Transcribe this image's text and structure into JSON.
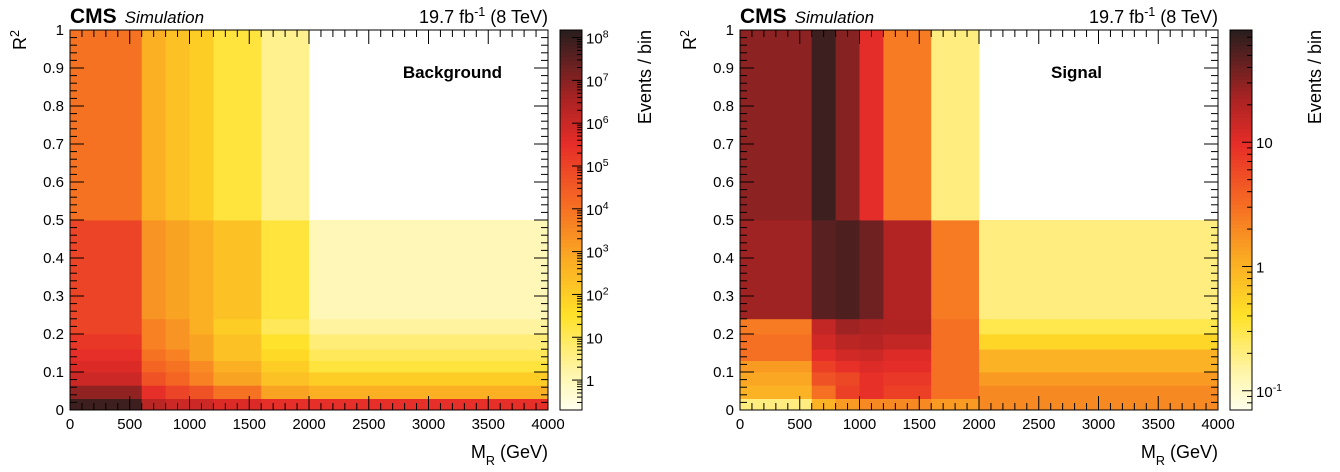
{
  "chart_data": [
    {
      "type": "heatmap",
      "title": "",
      "header_left_bold": "CMS",
      "header_left_italic": "Simulation",
      "header_right": {
        "base": "19.7 fb",
        "exp": "-1",
        "tail": " (8 TeV)"
      },
      "label": "Background",
      "xlabel": {
        "base": "M",
        "sub": "R",
        "tail": " (GeV)"
      },
      "ylabel": {
        "base": "R",
        "sup": "2"
      },
      "zlabel": "Events / bin",
      "xlim": [
        0,
        4000
      ],
      "ylim": [
        0,
        1
      ],
      "zscale": "log",
      "zlim": [
        0.2,
        150000000
      ],
      "x_edges": [
        0,
        600,
        800,
        1000,
        1200,
        1600,
        2000,
        4000
      ],
      "y_edges": [
        0,
        0.03,
        0.065,
        0.1,
        0.13,
        0.16,
        0.2,
        0.24,
        0.5,
        1.0
      ],
      "x_ticks": [
        0,
        500,
        1000,
        1500,
        2000,
        2500,
        3000,
        3500,
        4000
      ],
      "x_tick_labels": [
        "0",
        "500",
        "1000",
        "1500",
        "2000",
        "2500",
        "3000",
        "3500",
        "4000"
      ],
      "y_ticks": [
        0,
        0.1,
        0.2,
        0.3,
        0.4,
        0.5,
        0.6,
        0.7,
        0.8,
        0.9,
        1.0
      ],
      "y_tick_labels": [
        "0",
        "0.1",
        "0.2",
        "0.3",
        "0.4",
        "0.5",
        "0.6",
        "0.7",
        "0.8",
        "0.9",
        "1"
      ],
      "z_ticks": [
        {
          "base": "1",
          "exp": "",
          "value": 1
        },
        {
          "base": "10",
          "exp": "",
          "value": 10
        },
        {
          "base": "10",
          "exp": "2",
          "value": 100
        },
        {
          "base": "10",
          "exp": "3",
          "value": 1000
        },
        {
          "base": "10",
          "exp": "4",
          "value": 10000
        },
        {
          "base": "10",
          "exp": "5",
          "value": 100000
        },
        {
          "base": "10",
          "exp": "6",
          "value": 1000000
        },
        {
          "base": "10",
          "exp": "7",
          "value": 10000000
        },
        {
          "base": "10",
          "exp": "8",
          "value": 100000000
        }
      ],
      "values": [
        [
          80000000,
          2000000,
          1000000,
          1000000,
          500000,
          300000,
          300000
        ],
        [
          8000000,
          300000,
          100000,
          50000,
          10000,
          1000,
          500
        ],
        [
          1000000,
          50000,
          20000,
          5000,
          1000,
          200,
          100
        ],
        [
          500000,
          20000,
          10000,
          3000,
          500,
          100,
          20
        ],
        [
          300000,
          10000,
          5000,
          1000,
          200,
          50,
          10
        ],
        [
          200000,
          5000,
          2000,
          1000,
          200,
          30,
          5
        ],
        [
          100000,
          5000,
          2000,
          500,
          100,
          10,
          2
        ],
        [
          100000,
          2000,
          1000,
          500,
          200,
          20,
          1
        ],
        [
          10000,
          500,
          200,
          100,
          20,
          3,
          null
        ]
      ]
    },
    {
      "type": "heatmap",
      "title": "",
      "header_left_bold": "CMS",
      "header_left_italic": "Simulation",
      "header_right": {
        "base": "19.7 fb",
        "exp": "-1",
        "tail": " (8 TeV)"
      },
      "label": "Signal",
      "xlabel": {
        "base": "M",
        "sub": "R",
        "tail": " (GeV)"
      },
      "ylabel": {
        "base": "R",
        "sup": "2"
      },
      "zlabel": "Events / bin",
      "xlim": [
        0,
        4000
      ],
      "ylim": [
        0,
        1
      ],
      "zscale": "log",
      "zlim": [
        0.07,
        80
      ],
      "x_edges": [
        0,
        600,
        800,
        1000,
        1200,
        1600,
        2000,
        4000
      ],
      "y_edges": [
        0,
        0.03,
        0.065,
        0.1,
        0.13,
        0.16,
        0.2,
        0.24,
        0.5,
        1.0
      ],
      "x_ticks": [
        0,
        500,
        1000,
        1500,
        2000,
        2500,
        3000,
        3500,
        4000
      ],
      "x_tick_labels": [
        "0",
        "500",
        "1000",
        "1500",
        "2000",
        "2500",
        "3000",
        "3500",
        "4000"
      ],
      "y_ticks": [
        0,
        0.1,
        0.2,
        0.3,
        0.4,
        0.5,
        0.6,
        0.7,
        0.8,
        0.9,
        1.0
      ],
      "y_tick_labels": [
        "0",
        "0.1",
        "0.2",
        "0.3",
        "0.4",
        "0.5",
        "0.6",
        "0.7",
        "0.8",
        "0.9",
        "1"
      ],
      "z_ticks": [
        {
          "base": "10",
          "exp": "-1",
          "value": 0.1
        },
        {
          "base": "1",
          "exp": "",
          "value": 1
        },
        {
          "base": "10",
          "exp": "",
          "value": 10
        }
      ],
      "values": [
        [
          0.2,
          1,
          1.5,
          2,
          2,
          1.5,
          2
        ],
        [
          1,
          3,
          7,
          9,
          7,
          3,
          2
        ],
        [
          1.2,
          5,
          6,
          9,
          8,
          3,
          1.5
        ],
        [
          1.5,
          7,
          9,
          11,
          10,
          3,
          1
        ],
        [
          3,
          10,
          13,
          14,
          11,
          3,
          1
        ],
        [
          3,
          13,
          18,
          19,
          16,
          3,
          0.5
        ],
        [
          2.5,
          16,
          25,
          22,
          21,
          3,
          0.3
        ],
        [
          25,
          50,
          55,
          40,
          20,
          2.5,
          0.2
        ],
        [
          30,
          65,
          32,
          10,
          2.5,
          0.2,
          null
        ]
      ]
    }
  ]
}
